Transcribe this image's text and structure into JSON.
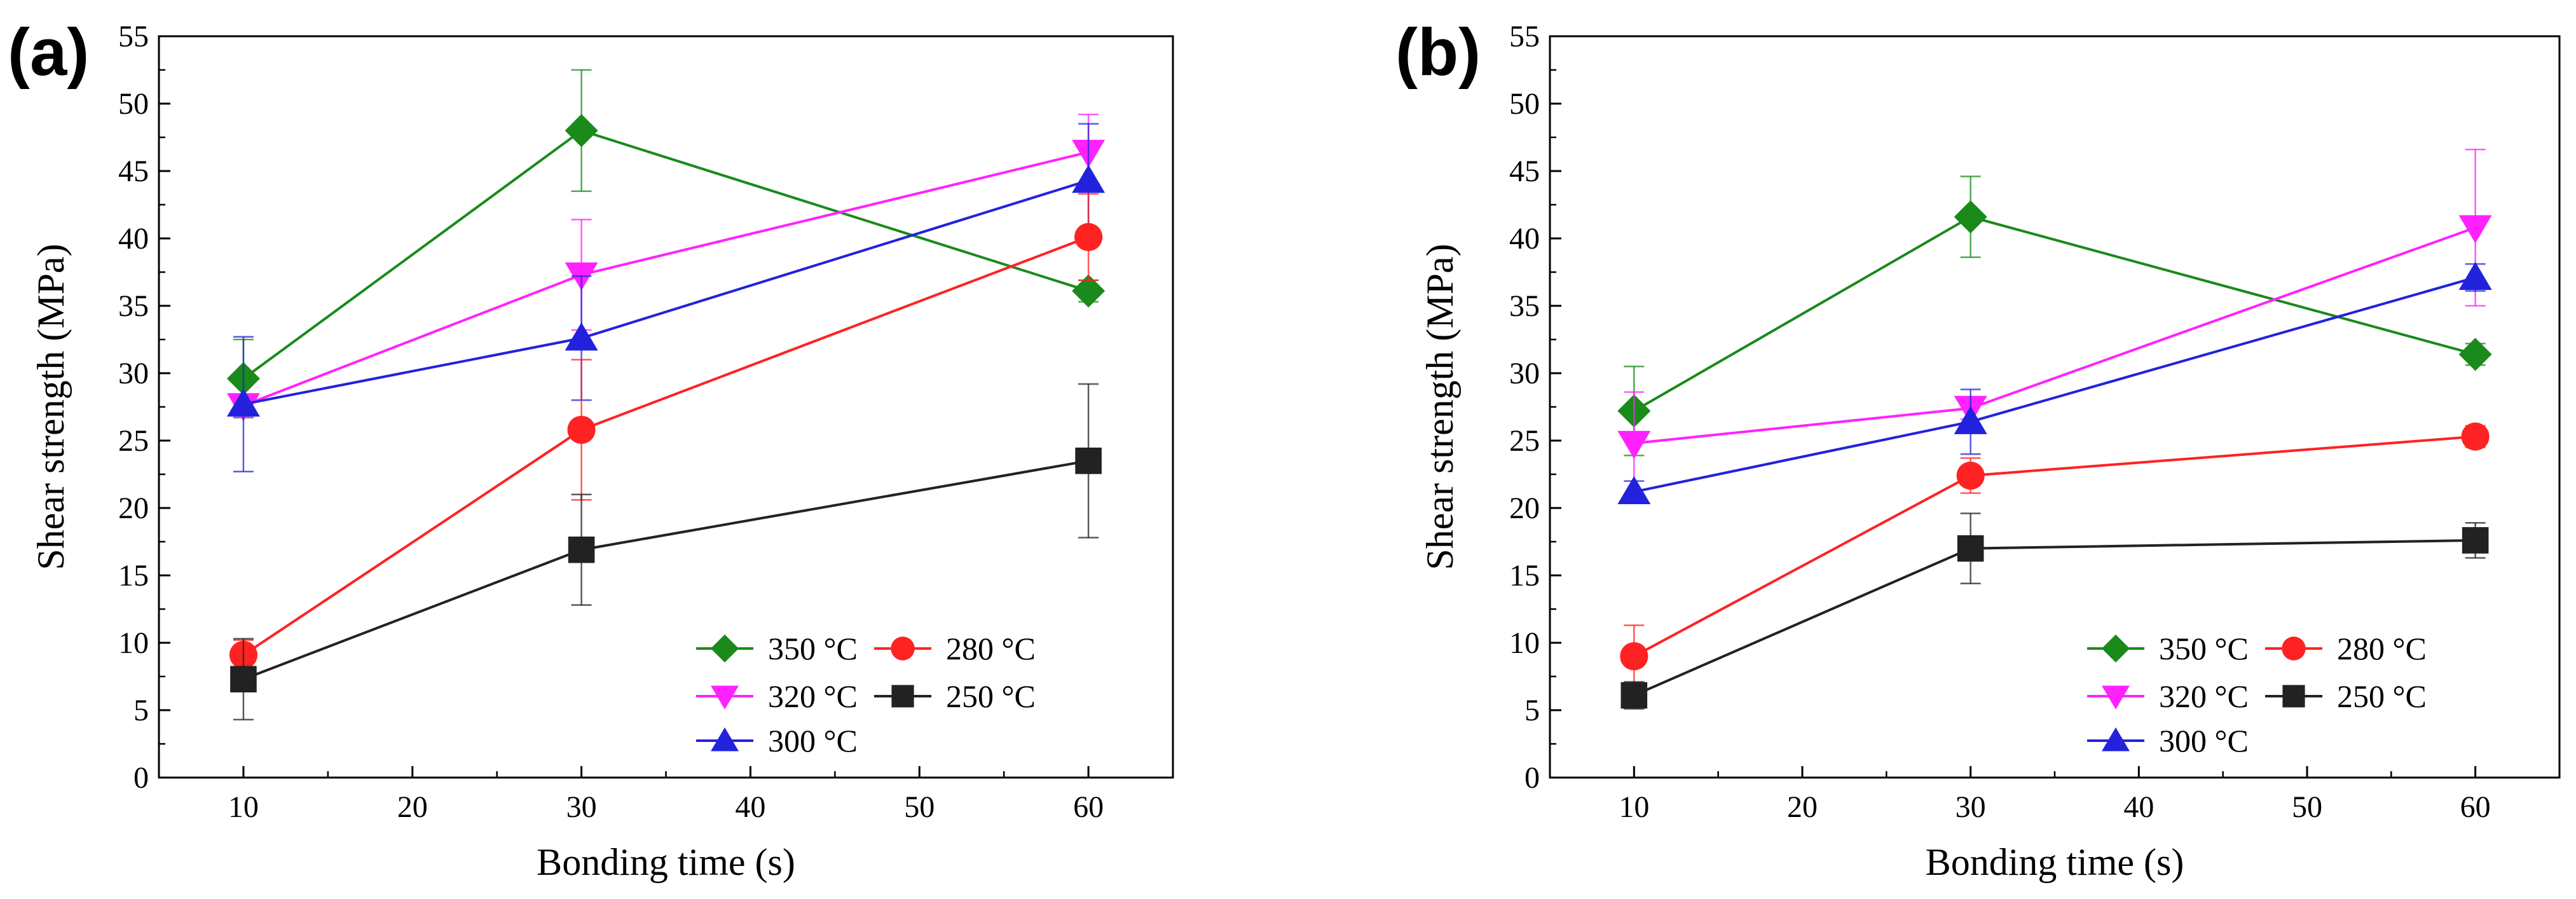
{
  "chart_data": [
    {
      "type": "line",
      "panel_label": "(a)",
      "xlabel": "Bonding time (s)",
      "ylabel": "Shear strength (MPa)",
      "xlim": [
        5,
        65
      ],
      "ylim": [
        0,
        55
      ],
      "xticks": [
        10,
        20,
        30,
        40,
        50,
        60
      ],
      "yticks": [
        0,
        5,
        10,
        15,
        20,
        25,
        30,
        35,
        40,
        45,
        50,
        55
      ],
      "x": [
        10,
        30,
        60
      ],
      "legend_position": "bottom-right",
      "series": [
        {
          "name": "350 °C",
          "color": "#1a8a1a",
          "marker": "diamond",
          "values": [
            29.6,
            48.0,
            36.1
          ],
          "err": [
            2.9,
            4.5,
            0.8
          ]
        },
        {
          "name": "320 °C",
          "color": "#ff22ff",
          "marker": "triangle-down",
          "values": [
            27.6,
            37.3,
            46.4
          ],
          "err": [
            0.8,
            4.1,
            2.8
          ]
        },
        {
          "name": "300 °C",
          "color": "#2222dd",
          "marker": "triangle-up",
          "values": [
            27.7,
            32.6,
            44.3
          ],
          "err": [
            5.0,
            4.6,
            4.2
          ]
        },
        {
          "name": "280 °C",
          "color": "#ff2222",
          "marker": "circle",
          "values": [
            9.1,
            25.8,
            40.1
          ],
          "err": [
            1.1,
            5.2,
            3.2
          ]
        },
        {
          "name": "250 °C",
          "color": "#222222",
          "marker": "square",
          "values": [
            7.3,
            16.9,
            23.5
          ],
          "err": [
            3.0,
            4.1,
            5.7
          ]
        }
      ]
    },
    {
      "type": "line",
      "panel_label": "(b)",
      "xlabel": "Bonding time (s)",
      "ylabel": "Shear strength (MPa)",
      "xlim": [
        5,
        65
      ],
      "ylim": [
        0,
        55
      ],
      "xticks": [
        10,
        20,
        30,
        40,
        50,
        60
      ],
      "yticks": [
        0,
        5,
        10,
        15,
        20,
        25,
        30,
        35,
        40,
        45,
        50,
        55
      ],
      "x": [
        10,
        30,
        60
      ],
      "legend_position": "bottom-right",
      "series": [
        {
          "name": "350 °C",
          "color": "#1a8a1a",
          "marker": "diamond",
          "values": [
            27.2,
            41.6,
            31.4
          ],
          "err": [
            3.3,
            3.0,
            0.8
          ]
        },
        {
          "name": "320 °C",
          "color": "#ff22ff",
          "marker": "triangle-down",
          "values": [
            24.8,
            27.4,
            40.8
          ],
          "err": [
            3.8,
            0.8,
            5.8
          ]
        },
        {
          "name": "300 °C",
          "color": "#2222dd",
          "marker": "triangle-up",
          "values": [
            21.2,
            26.4,
            37.1
          ],
          "err": [
            0.8,
            2.4,
            1.0
          ]
        },
        {
          "name": "280 °C",
          "color": "#ff2222",
          "marker": "circle",
          "values": [
            9.0,
            22.4,
            25.3
          ],
          "err": [
            2.3,
            1.3,
            0.8
          ]
        },
        {
          "name": "250 °C",
          "color": "#222222",
          "marker": "square",
          "values": [
            6.1,
            17.0,
            17.6
          ],
          "err": [
            1.0,
            2.6,
            1.3
          ]
        }
      ]
    }
  ]
}
